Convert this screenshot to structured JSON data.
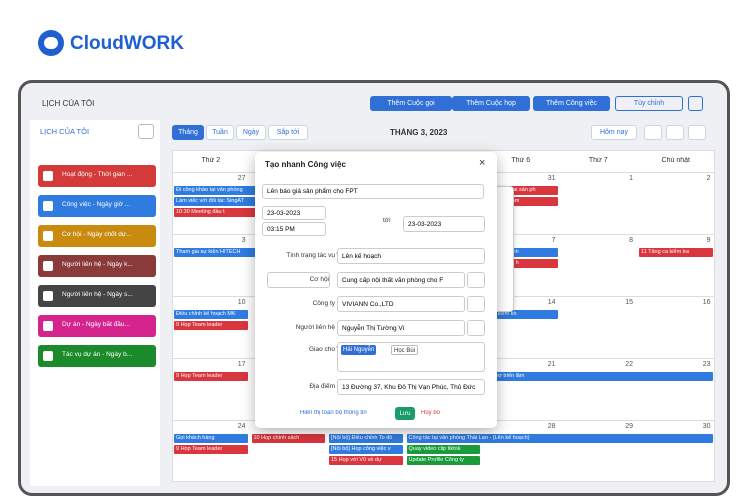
{
  "logo": "CloudWORK",
  "header": {
    "title": "LỊCH CỦA TÔI",
    "buttons": [
      "Thêm Cuộc gọi",
      "Thêm Cuộc họp",
      "Thêm Công việc",
      "Tùy chỉnh"
    ]
  },
  "sidebar": {
    "title": "LỊCH CỦA TÔI",
    "items": [
      {
        "label": "Hoạt động - Thời gian ...",
        "color": "#d43a3a"
      },
      {
        "label": "Công việc - Ngày giờ ...",
        "color": "#2f7be0"
      },
      {
        "label": "Cơ hội - Ngày chốt dự...",
        "color": "#c98a10"
      },
      {
        "label": "Người liên hệ - Ngày k...",
        "color": "#8b3a3a"
      },
      {
        "label": "Người liên hệ - Ngày s...",
        "color": "#444444"
      },
      {
        "label": "Dự án - Ngày bắt đầu...",
        "color": "#d6248f"
      },
      {
        "label": "Tác vụ dự án - Ngày b...",
        "color": "#1a8a2a"
      }
    ]
  },
  "toolbar": {
    "views": [
      "Tháng",
      "Tuần",
      "Ngày",
      "Sắp tới"
    ],
    "month": "THÁNG 3, 2023",
    "today": "Hôm nay"
  },
  "calendar": {
    "weekdays": [
      "Thứ 2",
      null,
      null,
      null,
      "Thứ 6",
      "Thứ 7",
      "Chủ nhật"
    ],
    "weeks": [
      {
        "days": [
          {
            "number": "27",
            "events": [
              {
                "text": "Đi công khảo tại văn phòng",
                "color": "#2f7be0",
                "days": 2
              },
              {
                "text": "Làm việc với đối tác SingAT",
                "color": "#2f7be0",
                "days": 2
              },
              {
                "text": "10:30 Meeting đầu t",
                "color": "#d9363e",
                "days": 2
              }
            ]
          },
          null,
          null,
          null,
          {
            "number": "31",
            "events": [
              {
                "text": "10 Triển khai sản ph",
                "color": "#d9363e",
                "days": 1
              },
              {
                "text": "mo sản phẩm",
                "color": "#d9363e",
                "days": 1
              }
            ]
          },
          {
            "number": "1",
            "events": []
          },
          {
            "number": "2",
            "events": []
          }
        ]
      },
      {
        "days": [
          {
            "number": "3",
            "events": [
              {
                "text": "Tham gia sự kiện HITECH",
                "color": "#2f7be0",
                "days": 2
              }
            ]
          },
          null,
          null,
          null,
          {
            "number": "7",
            "events": [
              {
                "text": "s cho chị Anh",
                "color": "#2f7be0",
                "days": 1
              },
              {
                "text": "eting khách h",
                "color": "#d9363e",
                "days": 1
              }
            ]
          },
          {
            "number": "8",
            "events": []
          },
          {
            "number": "9",
            "events": [
              {
                "text": "11 Tăng ca kiểm tra",
                "color": "#d9363e",
                "days": 1
              }
            ]
          }
        ]
      },
      {
        "days": [
          {
            "number": "10",
            "events": [
              {
                "text": "Điều chỉnh kế hoạch MK",
                "color": "#2f7be0",
                "days": 1
              },
              {
                "text": "9 Họp Team leader",
                "color": "#d9363e",
                "days": 1
              }
            ]
          },
          null,
          null,
          null,
          {
            "number": "14",
            "events": [
              {
                "text": "i đối kiểm kh",
                "color": "#2f7be0",
                "days": 1
              }
            ]
          },
          {
            "number": "15",
            "events": []
          },
          {
            "number": "16",
            "events": []
          }
        ]
      },
      {
        "days": [
          {
            "number": "17",
            "events": [
              {
                "text": "9 Họp Team leader",
                "color": "#d9363e",
                "days": 1
              }
            ]
          },
          null,
          null,
          null,
          {
            "number": "21",
            "events": [
              {
                "text": "hội trợ triển lãm",
                "color": "#2f7be0",
                "days": 3
              }
            ]
          },
          {
            "number": "22",
            "events": []
          },
          {
            "number": "23",
            "events": []
          }
        ]
      },
      {
        "days": [
          {
            "number": "24",
            "events": [
              {
                "text": "Gọi khách hàng",
                "color": "#2f7be0",
                "days": 1
              },
              {
                "text": "9 Họp Team leader",
                "color": "#d9363e",
                "days": 1
              }
            ]
          },
          {
            "number": "25",
            "events": [
              {
                "text": "10 Họp chính sách",
                "color": "#d9363e",
                "days": 1
              }
            ]
          },
          {
            "number": "26",
            "events": [
              {
                "text": "[Nội bộ] Điều chỉnh To đó",
                "color": "#2f7be0",
                "days": 1
              },
              {
                "text": "[Nội bộ] Họp công việc v",
                "color": "#2f7be0",
                "days": 1
              },
              {
                "text": "15 Họp với Vũ về dự",
                "color": "#d9363e",
                "days": 1
              }
            ]
          },
          {
            "number": "27",
            "events": [
              {
                "text": "Công tác tại văn phòng Thái Lan - (Lên kế hoạch)",
                "color": "#2f7be0",
                "days": 4
              },
              {
                "text": "Quay video clip tiktok",
                "color": "#1a9b3a",
                "days": 1
              },
              {
                "text": "Update Profile Công ty",
                "color": "#1a9b3a",
                "days": 1
              }
            ]
          },
          {
            "number": "28",
            "events": []
          },
          {
            "number": "29",
            "events": []
          },
          {
            "number": "30",
            "events": []
          }
        ]
      }
    ]
  },
  "modal": {
    "title": "Tạo nhanh Công việc",
    "subject": "Lên báo giá sản phẩm cho FPT",
    "start_date": "23-03-2023",
    "start_time": "03:15 PM",
    "to": "tới",
    "end_date": "23-03-2023",
    "required_mark": "*",
    "fields": [
      {
        "label": "Tình trạng tác vụ",
        "value": "Lên kế hoạch",
        "required": true
      },
      {
        "label": "Cơ hội",
        "value": "Cung cấp nội thất văn phòng cho F"
      },
      {
        "label": "Công ty",
        "value": "VIVIANN Co.,LTD"
      },
      {
        "label": "Người liên hệ",
        "value": "Nguyễn Thị Tường Vi"
      }
    ],
    "assign_label": "Giao cho",
    "assignees": [
      "Hải Nguyễn",
      "Học Bùi"
    ],
    "location_label": "Địa điểm",
    "location": "13 Đường 37, Khu Đô Thị Vạn Phúc, Thủ Đức",
    "buttons": {
      "show_all": "Hiển thị toàn bộ thông tin",
      "save": "Lưu",
      "cancel": "Hủy bỏ"
    }
  }
}
